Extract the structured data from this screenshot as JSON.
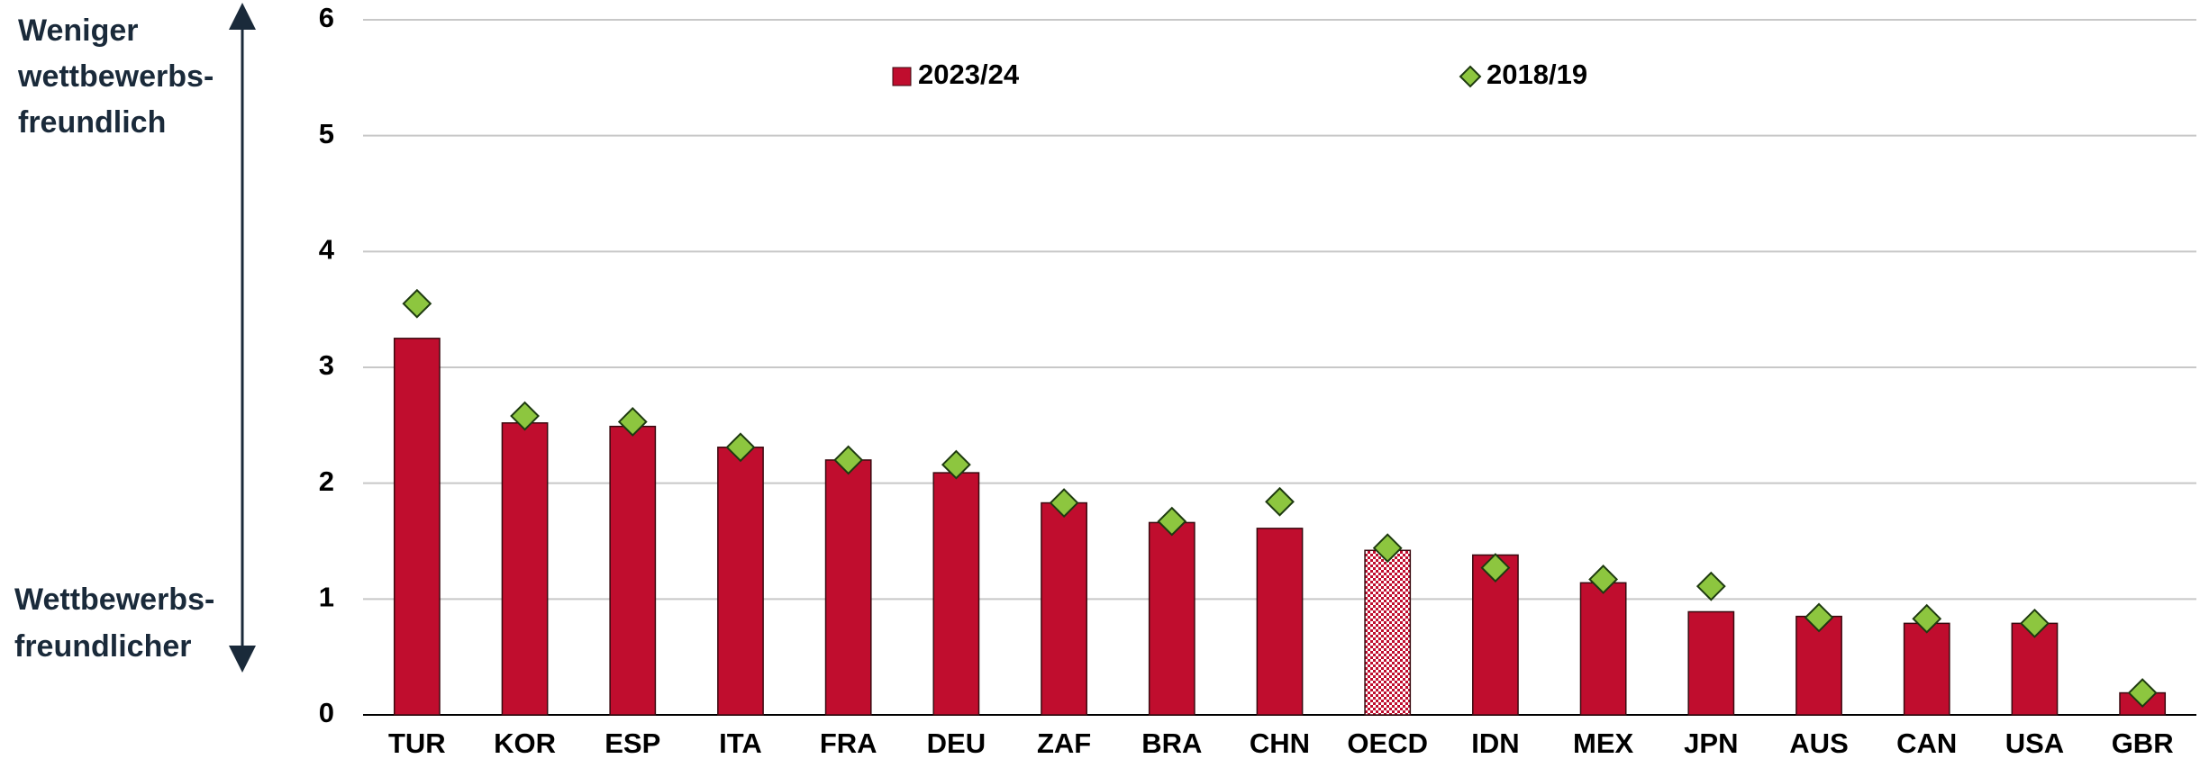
{
  "chart_data": {
    "type": "bar",
    "categories": [
      "TUR",
      "KOR",
      "ESP",
      "ITA",
      "FRA",
      "DEU",
      "ZAF",
      "BRA",
      "CHN",
      "OECD",
      "IDN",
      "MEX",
      "JPN",
      "AUS",
      "CAN",
      "USA",
      "GBR"
    ],
    "series": [
      {
        "name": "2023/24",
        "color": "#c00d2e",
        "kind": "bar",
        "values": [
          3.25,
          2.52,
          2.49,
          2.31,
          2.2,
          2.09,
          1.83,
          1.66,
          1.61,
          1.42,
          1.38,
          1.14,
          0.89,
          0.85,
          0.79,
          0.79,
          0.19
        ]
      },
      {
        "name": "2018/19",
        "color": "#8dc63f",
        "kind": "diamond",
        "values": [
          3.55,
          2.58,
          2.53,
          2.31,
          2.2,
          2.16,
          1.83,
          1.67,
          1.84,
          1.44,
          1.27,
          1.17,
          1.11,
          0.84,
          0.83,
          0.79,
          0.19
        ]
      }
    ],
    "highlight": "OECD",
    "ylim": [
      0,
      6
    ],
    "yticks": [
      0,
      1,
      2,
      3,
      4,
      5,
      6
    ],
    "grid": true,
    "annotations": {
      "top": [
        "Weniger",
        "wettbewerbs-",
        "freundlich"
      ],
      "bottom": [
        "Wettbewerbs-",
        "freundlicher"
      ]
    }
  }
}
